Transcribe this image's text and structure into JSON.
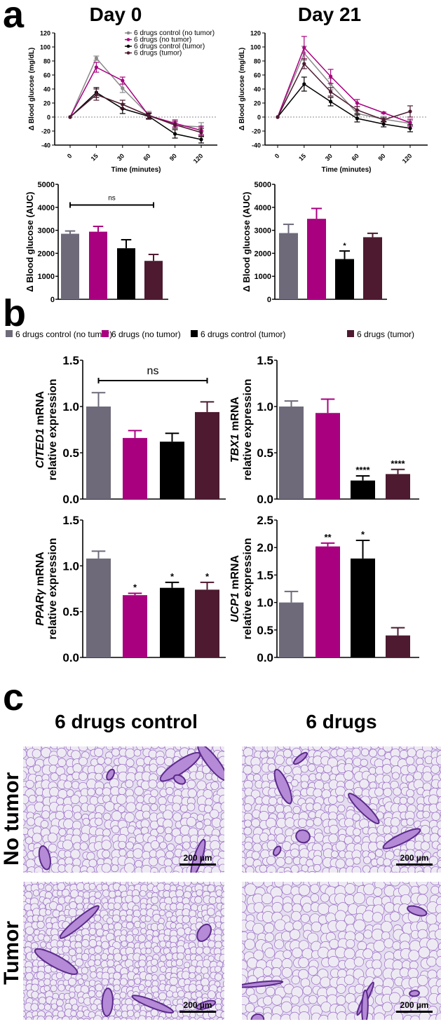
{
  "panel_labels": {
    "a": "a",
    "b": "b",
    "c": "c"
  },
  "colors": {
    "control_no_tumor": "#6e6a7a",
    "drugs_no_tumor": "#a8007f",
    "control_tumor": "#000000",
    "drugs_tumor": "#4d1a30",
    "line_control_no_tumor": "#8a8a8a"
  },
  "legend_b": [
    "6 drugs control (no tumor)",
    "6 drugs (no tumor)",
    "6 drugs control (tumor)",
    "6 drugs (tumor)"
  ],
  "chart_data": [
    {
      "type": "line",
      "title": "Day 0",
      "xlabel": "Time (minutes)",
      "ylabel": "Δ Blood glucose (mg/dL)",
      "x": [
        "0",
        "15",
        "30",
        "60",
        "90",
        "120"
      ],
      "ylim": [
        -40,
        120
      ],
      "yticks": [
        "-40",
        "-20",
        "0",
        "20",
        "40",
        "60",
        "80",
        "100",
        "120"
      ],
      "reference_line": 0,
      "legend_position": "top-right",
      "series": [
        {
          "name": "6 drugs control (no tumor)",
          "values": [
            0,
            84,
            41,
            3,
            -12,
            -14
          ],
          "error": [
            0,
            3,
            6,
            5,
            4,
            6
          ]
        },
        {
          "name": "6 drugs (no tumor)",
          "values": [
            0,
            71,
            52,
            2,
            -9,
            -19
          ],
          "error": [
            0,
            7,
            5,
            4,
            5,
            6
          ]
        },
        {
          "name": "6 drugs control (tumor)",
          "values": [
            0,
            35,
            12,
            1,
            -24,
            -32
          ],
          "error": [
            0,
            7,
            7,
            4,
            6,
            5
          ]
        },
        {
          "name": "6 drugs (tumor)",
          "values": [
            0,
            32,
            18,
            2,
            -11,
            -22
          ],
          "error": [
            0,
            8,
            6,
            4,
            5,
            6
          ]
        }
      ]
    },
    {
      "type": "line",
      "title": "Day 21",
      "xlabel": "Time (minutes)",
      "ylabel": "Δ Blood glucose (mg/dL)",
      "x": [
        "0",
        "15",
        "30",
        "60",
        "90",
        "120"
      ],
      "ylim": [
        -40,
        120
      ],
      "yticks": [
        "-40",
        "-20",
        "0",
        "20",
        "40",
        "60",
        "80",
        "100",
        "120"
      ],
      "reference_line": 0,
      "series": [
        {
          "values": [
            0,
            91,
            47,
            5,
            -3,
            -9
          ],
          "error": [
            0,
            10,
            8,
            5,
            4,
            4
          ]
        },
        {
          "values": [
            0,
            99,
            58,
            20,
            6,
            -8
          ],
          "error": [
            0,
            16,
            10,
            5,
            1,
            5
          ]
        },
        {
          "values": [
            0,
            47,
            22,
            -2,
            -10,
            -16
          ],
          "error": [
            0,
            10,
            6,
            5,
            4,
            5
          ]
        },
        {
          "values": [
            0,
            76,
            36,
            10,
            -4,
            8
          ],
          "error": [
            0,
            7,
            6,
            5,
            3,
            8
          ]
        }
      ]
    },
    {
      "type": "bar",
      "ylabel": "Δ Blood glucose (AUC)",
      "ylim": [
        0,
        5000
      ],
      "yticks": [
        "0",
        "1000",
        "2000",
        "3000",
        "4000",
        "5000"
      ],
      "values": [
        2850,
        2940,
        2220,
        1670
      ],
      "error": [
        120,
        230,
        370,
        280
      ],
      "significance": [
        "",
        "",
        "",
        ""
      ],
      "bracket": {
        "label": "ns",
        "from": 0,
        "to": 3,
        "y": 4100
      }
    },
    {
      "type": "bar",
      "ylabel": "Δ Blood glucose (AUC)",
      "ylim": [
        0,
        5000
      ],
      "yticks": [
        "0",
        "1000",
        "2000",
        "3000",
        "4000",
        "5000"
      ],
      "values": [
        2880,
        3500,
        1750,
        2700
      ],
      "error": [
        380,
        450,
        350,
        170
      ],
      "significance": [
        "",
        "",
        "*",
        ""
      ]
    },
    {
      "type": "bar",
      "ylabel_gene": "CITED1",
      "ylabel_rest": " mRNA",
      "ylabel2": "relative expression",
      "ylim": [
        0,
        1.5
      ],
      "yticks": [
        "0.0",
        "0.5",
        "1.0",
        "1.5"
      ],
      "values": [
        1.0,
        0.66,
        0.62,
        0.94
      ],
      "error": [
        0.15,
        0.08,
        0.09,
        0.11
      ],
      "significance": [
        "",
        "",
        "",
        ""
      ],
      "bracket": {
        "label": "ns",
        "from": 0,
        "to": 3,
        "y": 1.28
      }
    },
    {
      "type": "bar",
      "ylabel_gene": "TBX1",
      "ylabel_rest": " mRNA",
      "ylabel2": "relative expression",
      "ylim": [
        0,
        1.5
      ],
      "yticks": [
        "0.0",
        "0.5",
        "1.0",
        "1.5"
      ],
      "values": [
        1.0,
        0.93,
        0.2,
        0.27
      ],
      "error": [
        0.06,
        0.15,
        0.05,
        0.05
      ],
      "significance": [
        "",
        "",
        "****",
        "****"
      ]
    },
    {
      "type": "bar",
      "ylabel_gene": "PPARγ",
      "ylabel_rest": " mRNA",
      "ylabel2": "relative expression",
      "ylim": [
        0,
        1.5
      ],
      "yticks": [
        "0.0",
        "0.5",
        "1.0",
        "1.5"
      ],
      "values": [
        1.08,
        0.68,
        0.76,
        0.74
      ],
      "error": [
        0.08,
        0.02,
        0.06,
        0.08
      ],
      "significance": [
        "",
        "*",
        "*",
        "*"
      ]
    },
    {
      "type": "bar",
      "ylabel_gene": "UCP1",
      "ylabel_rest": " mRNA",
      "ylabel2": "relative expression",
      "ylim": [
        0,
        2.5
      ],
      "yticks": [
        "0.0",
        "0.5",
        "1.0",
        "1.5",
        "2.0",
        "2.5"
      ],
      "values": [
        1.0,
        2.02,
        1.8,
        0.4
      ],
      "error": [
        0.2,
        0.06,
        0.33,
        0.14
      ],
      "significance": [
        "",
        "**",
        "*",
        ""
      ]
    }
  ],
  "histology": {
    "column_titles": [
      "6 drugs control",
      "6 drugs"
    ],
    "row_labels": [
      "No tumor",
      "Tumor"
    ],
    "scale_bar": "200 µm"
  }
}
